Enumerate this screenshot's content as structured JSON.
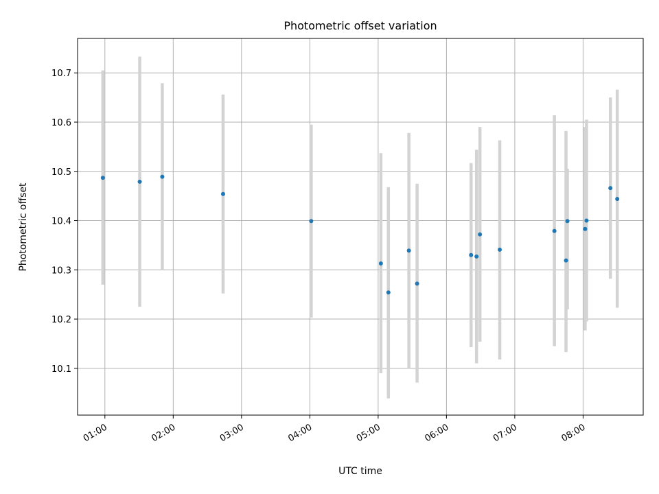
{
  "chart_data": {
    "type": "scatter",
    "title": "Photometric offset variation",
    "xlabel": "UTC time",
    "ylabel": "Photometric offset",
    "x_unit": "hours UTC",
    "xlim": [
      0.6,
      8.88
    ],
    "ylim": [
      10.005,
      10.77
    ],
    "grid": true,
    "x_ticks": [
      {
        "value": 1,
        "label": "01:00"
      },
      {
        "value": 2,
        "label": "02:00"
      },
      {
        "value": 3,
        "label": "03:00"
      },
      {
        "value": 4,
        "label": "04:00"
      },
      {
        "value": 5,
        "label": "05:00"
      },
      {
        "value": 6,
        "label": "06:00"
      },
      {
        "value": 7,
        "label": "07:00"
      },
      {
        "value": 8,
        "label": "08:00"
      }
    ],
    "y_ticks": [
      {
        "value": 10.1,
        "label": "10.1"
      },
      {
        "value": 10.2,
        "label": "10.2"
      },
      {
        "value": 10.3,
        "label": "10.3"
      },
      {
        "value": 10.4,
        "label": "10.4"
      },
      {
        "value": 10.5,
        "label": "10.5"
      },
      {
        "value": 10.6,
        "label": "10.6"
      },
      {
        "value": 10.7,
        "label": "10.7"
      }
    ],
    "point_color": "#1f77b4",
    "errorbar_color": "#d3d3d3",
    "points": [
      {
        "x": 0.97,
        "y": 10.487,
        "ylow": 10.27,
        "yhigh": 10.705
      },
      {
        "x": 1.51,
        "y": 10.479,
        "ylow": 10.225,
        "yhigh": 10.733
      },
      {
        "x": 1.84,
        "y": 10.489,
        "ylow": 10.3,
        "yhigh": 10.679
      },
      {
        "x": 2.73,
        "y": 10.454,
        "ylow": 10.252,
        "yhigh": 10.656
      },
      {
        "x": 4.02,
        "y": 10.399,
        "ylow": 10.203,
        "yhigh": 10.595
      },
      {
        "x": 5.04,
        "y": 10.313,
        "ylow": 10.09,
        "yhigh": 10.537
      },
      {
        "x": 5.15,
        "y": 10.254,
        "ylow": 10.039,
        "yhigh": 10.468
      },
      {
        "x": 5.45,
        "y": 10.339,
        "ylow": 10.1,
        "yhigh": 10.578
      },
      {
        "x": 5.57,
        "y": 10.272,
        "ylow": 10.071,
        "yhigh": 10.475
      },
      {
        "x": 6.36,
        "y": 10.33,
        "ylow": 10.143,
        "yhigh": 10.517
      },
      {
        "x": 6.44,
        "y": 10.327,
        "ylow": 10.11,
        "yhigh": 10.544
      },
      {
        "x": 6.49,
        "y": 10.372,
        "ylow": 10.154,
        "yhigh": 10.59
      },
      {
        "x": 6.78,
        "y": 10.341,
        "ylow": 10.118,
        "yhigh": 10.563
      },
      {
        "x": 7.58,
        "y": 10.379,
        "ylow": 10.145,
        "yhigh": 10.614
      },
      {
        "x": 7.75,
        "y": 10.319,
        "ylow": 10.133,
        "yhigh": 10.582
      },
      {
        "x": 7.77,
        "y": 10.399,
        "ylow": 10.22,
        "yhigh": 10.505
      },
      {
        "x": 8.03,
        "y": 10.383,
        "ylow": 10.177,
        "yhigh": 10.59
      },
      {
        "x": 8.05,
        "y": 10.4,
        "ylow": 10.195,
        "yhigh": 10.605
      },
      {
        "x": 8.4,
        "y": 10.466,
        "ylow": 10.282,
        "yhigh": 10.65
      },
      {
        "x": 8.5,
        "y": 10.444,
        "ylow": 10.223,
        "yhigh": 10.666
      }
    ]
  }
}
